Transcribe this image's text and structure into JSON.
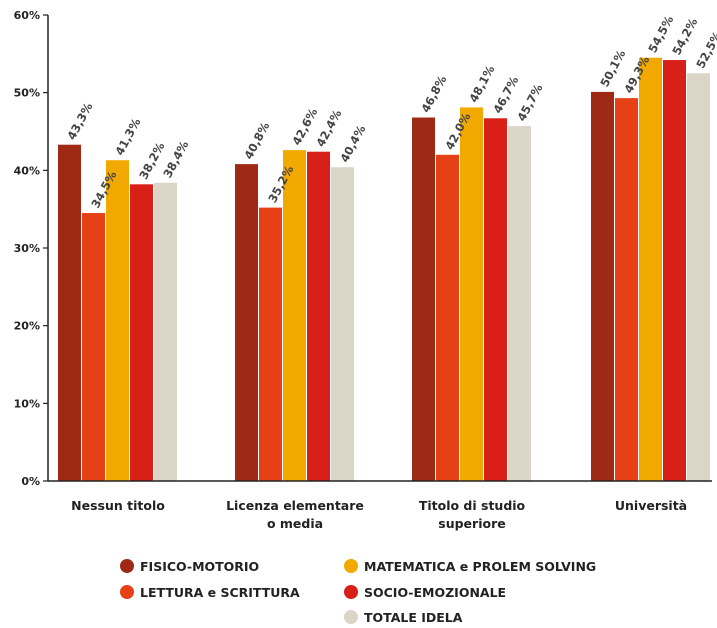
{
  "chart_data": {
    "type": "bar",
    "categories": [
      [
        "Nessun titolo"
      ],
      [
        "Licenza elementare",
        "o media"
      ],
      [
        "Titolo di studio",
        "superiore"
      ],
      [
        "Università"
      ]
    ],
    "series": [
      {
        "name": "FISICO-MOTORIO",
        "color": "#9E2A16",
        "values": [
          43.3,
          40.8,
          46.8,
          50.1
        ],
        "labels": [
          "43,3%",
          "40,8%",
          "46,8%",
          "50,1%"
        ]
      },
      {
        "name": "LETTURA e SCRITTURA",
        "color": "#E54016",
        "values": [
          34.5,
          35.2,
          42.0,
          49.3
        ],
        "labels": [
          "34,5%",
          "35,2%",
          "42,0%",
          "49,3%"
        ]
      },
      {
        "name": "MATEMATICA e PROLEM SOLVING",
        "color": "#F1A900",
        "values": [
          41.3,
          42.6,
          48.1,
          54.5
        ],
        "labels": [
          "41,3%",
          "42,6%",
          "48,1%",
          "54,5%"
        ]
      },
      {
        "name": "SOCIO-EMOZIONALE",
        "color": "#D81F18",
        "values": [
          38.2,
          42.4,
          46.7,
          54.2
        ],
        "labels": [
          "38,2%",
          "42,4%",
          "46,7%",
          "54,2%"
        ]
      },
      {
        "name": "TOTALE IDELA",
        "color": "#DAD5C6",
        "values": [
          38.4,
          40.4,
          45.7,
          52.5
        ],
        "labels": [
          "38,4%",
          "40,4%",
          "45,7%",
          "52,5%"
        ]
      }
    ],
    "ylim": [
      0,
      60
    ],
    "yticks": [
      0,
      10,
      20,
      30,
      40,
      50,
      60
    ],
    "ytick_labels": [
      "0%",
      "10%",
      "20%",
      "30%",
      "40%",
      "50%",
      "60%"
    ],
    "grid": false,
    "legend_position": "bottom"
  }
}
